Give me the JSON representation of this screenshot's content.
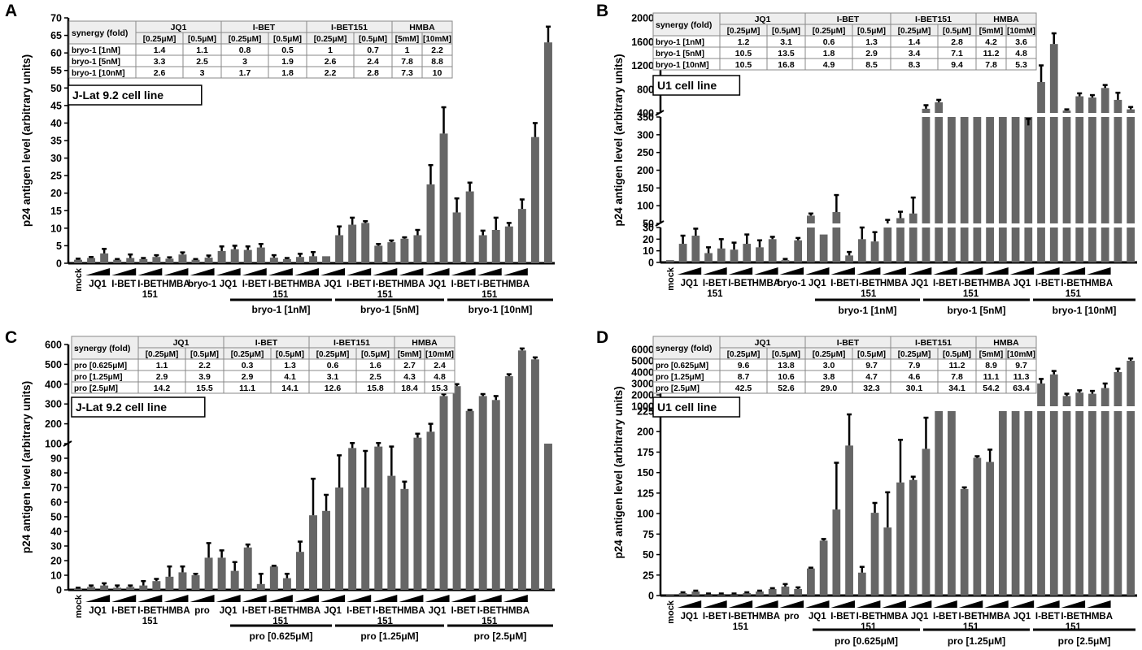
{
  "colors": {
    "bar": "#666666",
    "error": "#000000",
    "axis": "#000000",
    "table_header": "#eeeeee",
    "table_line": "#888888"
  },
  "panels": [
    {
      "letter": "A",
      "ylabel": "p24 antigen level (arbitrary units)",
      "cell_line": "J-Lat 9.2 cell line",
      "table": {
        "corner": "synergy (fold)",
        "groups": [
          "JQ1",
          "I-BET",
          "I-BET151",
          "HMBA"
        ],
        "subheaders": [
          "[0.25μM]",
          "[0.5μM]",
          "[0.25μM]",
          "[0.5μM]",
          "[0.25μM]",
          "[0.5μM]",
          "[5mM]",
          "[10mM]"
        ],
        "rows": [
          {
            "label": "bryo-1 [1nM]",
            "values": [
              "1.4",
              "1.1",
              "0.8",
              "0.5",
              "1",
              "0.7",
              "1",
              "2.2"
            ]
          },
          {
            "label": "bryo-1 [5nM]",
            "values": [
              "3.3",
              "2.5",
              "3",
              "1.9",
              "2.6",
              "2.4",
              "7.8",
              "8.8"
            ]
          },
          {
            "label": "bryo-1 [10nM]",
            "values": [
              "2.6",
              "3",
              "1.7",
              "1.8",
              "2.2",
              "2.8",
              "7.3",
              "10"
            ]
          }
        ]
      },
      "x_labels": [
        "mock",
        "JQ1",
        "I-BET",
        "I-BET\n151",
        "HMBA",
        "bryo-1",
        "JQ1",
        "I-BET",
        "I-BET\n151",
        "HMBA",
        "JQ1",
        "I-BET",
        "I-BET\n151",
        "HMBA",
        "JQ1",
        "I-BET",
        "I-BET\n151",
        "HMBA"
      ],
      "bracket_labels": [
        "bryo-1 [1nM]",
        "bryo-1 [5nM]",
        "bryo-1 [10nM]"
      ]
    },
    {
      "letter": "B",
      "ylabel": "p24 antigen level (arbitrary units)",
      "cell_line": "U1 cell line",
      "table": {
        "corner": "synergy (fold)",
        "groups": [
          "JQ1",
          "I-BET",
          "I-BET151",
          "HMBA"
        ],
        "subheaders": [
          "[0.25μM]",
          "[0.5μM]",
          "[0.25μM]",
          "[0.5μM]",
          "[0.25μM]",
          "[0.5μM]",
          "[5mM]",
          "[10mM]"
        ],
        "rows": [
          {
            "label": "bryo-1 [1nM]",
            "values": [
              "1.2",
              "3.1",
              "0.6",
              "1.3",
              "1.4",
              "2.8",
              "4.2",
              "3.6"
            ]
          },
          {
            "label": "bryo-1 [5nM]",
            "values": [
              "10.5",
              "13.5",
              "1.8",
              "2.9",
              "3.4",
              "7.1",
              "11.2",
              "4.8"
            ]
          },
          {
            "label": "bryo-1 [10nM]",
            "values": [
              "10.5",
              "16.8",
              "4.9",
              "8.5",
              "8.3",
              "9.4",
              "7.8",
              "5.3"
            ]
          }
        ]
      },
      "x_labels": [
        "mock",
        "JQ1",
        "I-BET\n151",
        "I-BET",
        "HMBA",
        "bryo-1",
        "JQ1",
        "I-BET",
        "I-BET\n151",
        "HMBA",
        "JQ1",
        "I-BET",
        "I-BET\n151",
        "HMBA",
        "JQ1",
        "I-BET",
        "I-BET\n151",
        "HMBA"
      ],
      "bracket_labels": [
        "bryo-1 [1nM]",
        "bryo-1 [5nM]",
        "bryo-1 [10nM]"
      ]
    },
    {
      "letter": "C",
      "ylabel": "p24 antigen level (arbitrary units)",
      "cell_line": "J-Lat 9.2 cell line",
      "table": {
        "corner": "synergy (fold)",
        "groups": [
          "JQ1",
          "I-BET",
          "I-BET151",
          "HMBA"
        ],
        "subheaders": [
          "[0.25μM]",
          "[0.5μM]",
          "[0.25μM]",
          "[0.5μM]",
          "[0.25μM]",
          "[0.5μM]",
          "[5mM]",
          "[10mM]"
        ],
        "rows": [
          {
            "label": "pro [0.625μM]",
            "values": [
              "1.1",
              "2.2",
              "0.3",
              "1.3",
              "0.6",
              "1.6",
              "2.7",
              "2.4"
            ]
          },
          {
            "label": "pro [1.25μM]",
            "values": [
              "2.9",
              "3.9",
              "2.9",
              "4.1",
              "3.1",
              "2.5",
              "4.3",
              "4.8"
            ]
          },
          {
            "label": "pro [2.5μM]",
            "values": [
              "14.2",
              "15.5",
              "11.1",
              "14.1",
              "12.6",
              "15.8",
              "18.4",
              "15.3"
            ]
          }
        ]
      },
      "x_labels": [
        "mock",
        "JQ1",
        "I-BET",
        "I-BET\n151",
        "HMBA",
        "pro",
        "JQ1",
        "I-BET",
        "I-BET\n151",
        "HMBA",
        "JQ1",
        "I-BET",
        "I-BET\n151",
        "HMBA",
        "JQ1",
        "I-BET",
        "I-BET\n151",
        "HMBA"
      ],
      "bracket_labels": [
        "pro [0.625μM]",
        "pro [1.25μM]",
        "pro [2.5μM]"
      ]
    },
    {
      "letter": "D",
      "ylabel": "p24 antigen level (arbitrary units)",
      "cell_line": "U1 cell line",
      "table": {
        "corner": "synergy (fold)",
        "groups": [
          "JQ1",
          "I-BET",
          "I-BET151",
          "HMBA"
        ],
        "subheaders": [
          "[0.25μM]",
          "[0.5μM]",
          "[0.25μM]",
          "[0.5μM]",
          "[0.25μM]",
          "[0.5μM]",
          "[5mM]",
          "[10mM]"
        ],
        "rows": [
          {
            "label": "pro [0.625μM]",
            "values": [
              "9.6",
              "13.8",
              "3.0",
              "9.7",
              "7.9",
              "11.2",
              "8.9",
              "9.7"
            ]
          },
          {
            "label": "pro [1.25μM]",
            "values": [
              "8.7",
              "10.6",
              "3.8",
              "4.7",
              "4.6",
              "7.8",
              "11.1",
              "11.3"
            ]
          },
          {
            "label": "pro [2.5μM]",
            "values": [
              "42.5",
              "52.6",
              "29.0",
              "32.3",
              "30.1",
              "34.1",
              "54.2",
              "63.4"
            ]
          }
        ]
      },
      "x_labels": [
        "mock",
        "JQ1",
        "I-BET",
        "I-BET\n151",
        "HMBA",
        "pro",
        "JQ1",
        "I-BET",
        "I-BET\n151",
        "HMBA",
        "JQ1",
        "I-BET",
        "I-BET\n151",
        "HMBA",
        "JQ1",
        "I-BET",
        "I-BET\n151",
        "HMBA"
      ],
      "bracket_labels": [
        "pro [0.625μM]",
        "pro [1.25μM]",
        "pro [2.5μM]"
      ]
    }
  ],
  "chart_data": [
    {
      "type": "bar",
      "panel": "A",
      "ylabel": "p24 antigen level (arbitrary units)",
      "ylim": [
        0,
        70
      ],
      "yticks": [
        0,
        5,
        10,
        15,
        20,
        25,
        30,
        35,
        40,
        45,
        50,
        55,
        60,
        65,
        70
      ],
      "values": [
        1.0,
        1.5,
        2.8,
        1.0,
        1.5,
        1.2,
        1.8,
        1.3,
        2.5,
        1.0,
        1.6,
        3.5,
        4.0,
        3.8,
        4.5,
        1.6,
        1.2,
        1.8,
        2.0,
        2.0,
        8.0,
        11.0,
        11.5,
        5.0,
        6.0,
        7.0,
        8.0,
        22.5,
        37.0,
        14.5,
        20.5,
        8.0,
        9.5,
        10.5,
        15.5,
        36.0,
        63.0
      ],
      "errors": [
        0.3,
        0.3,
        1.3,
        0.2,
        1.0,
        0.3,
        0.5,
        0.4,
        0.6,
        0.2,
        0.6,
        1.3,
        1.0,
        1.0,
        1.0,
        0.7,
        0.3,
        0.9,
        1.2,
        0,
        2.5,
        2.0,
        0.5,
        0.5,
        0.5,
        0.4,
        1.5,
        5.5,
        7.5,
        4.0,
        2.5,
        1.3,
        3.5,
        1.0,
        2.7,
        4.0,
        4.5
      ]
    },
    {
      "type": "bar",
      "panel": "B",
      "ylabel": "p24 antigen level (arbitrary units)",
      "broken_axis": true,
      "ytick_labels": [
        "0",
        "10",
        "20",
        "30",
        "50",
        "100",
        "150",
        "200",
        "250",
        "300",
        "350",
        "400",
        "800",
        "1200",
        "1600",
        "2000"
      ],
      "values": [
        2,
        16,
        23,
        8,
        12,
        11,
        16,
        13,
        20,
        2,
        19,
        72,
        24,
        82,
        6,
        20,
        18,
        50,
        65,
        78,
        350,
        350,
        350,
        350,
        350,
        350,
        350,
        350,
        350,
        350,
        350,
        350,
        350,
        350,
        350,
        350,
        350
      ],
      "errors": [
        0,
        7,
        6,
        5,
        8,
        6,
        8,
        6,
        2,
        1,
        2,
        6,
        0,
        48,
        3,
        12,
        8,
        10,
        18,
        45,
        0,
        0,
        0,
        0,
        0,
        0,
        0,
        0,
        0,
        0,
        0,
        0,
        0,
        0,
        0,
        0,
        0
      ],
      "upper_values": [
        null,
        null,
        null,
        null,
        null,
        null,
        null,
        null,
        null,
        null,
        null,
        null,
        null,
        null,
        null,
        null,
        null,
        null,
        null,
        null,
        470,
        580,
        null,
        null,
        null,
        null,
        null,
        null,
        190,
        920,
        1560,
        440,
        680,
        660,
        820,
        620,
        460
      ],
      "upper_errors": [
        null,
        null,
        null,
        null,
        null,
        null,
        null,
        null,
        null,
        null,
        null,
        null,
        null,
        null,
        null,
        null,
        null,
        null,
        null,
        null,
        60,
        40,
        null,
        null,
        null,
        null,
        null,
        null,
        110,
        280,
        180,
        20,
        50,
        40,
        50,
        120,
        40
      ]
    },
    {
      "type": "bar",
      "panel": "C",
      "ylabel": "p24 antigen level (arbitrary units)",
      "broken_axis": true,
      "ytick_labels": [
        "0",
        "10",
        "20",
        "30",
        "40",
        "50",
        "60",
        "70",
        "80",
        "90",
        "100",
        "200",
        "300",
        "400",
        "500",
        "600"
      ],
      "values": [
        1,
        2,
        3,
        1.5,
        2,
        3,
        6,
        9,
        12,
        10,
        22,
        22,
        13,
        29,
        4,
        16,
        8,
        26,
        51,
        54,
        70,
        97,
        70,
        98,
        78,
        69,
        100,
        100,
        100,
        100,
        100,
        100,
        100,
        100,
        100,
        100,
        100
      ],
      "errors": [
        0.5,
        1,
        1.5,
        1.5,
        1,
        3,
        1.5,
        7,
        4,
        1,
        10,
        5,
        6,
        2,
        7,
        0.5,
        3,
        7,
        25,
        11,
        22,
        6,
        25,
        5,
        20,
        5,
        0,
        0,
        0,
        0,
        0,
        0,
        0,
        0,
        0,
        0,
        0
      ],
      "upper_values": [
        null,
        null,
        null,
        null,
        null,
        null,
        null,
        null,
        null,
        null,
        null,
        null,
        null,
        null,
        null,
        null,
        null,
        null,
        null,
        null,
        null,
        null,
        null,
        null,
        null,
        null,
        130,
        160,
        340,
        390,
        265,
        340,
        320,
        440,
        570,
        525,
        null
      ],
      "upper_errors": [
        null,
        null,
        null,
        null,
        null,
        null,
        null,
        null,
        null,
        null,
        null,
        null,
        null,
        null,
        null,
        null,
        null,
        null,
        null,
        null,
        null,
        null,
        null,
        null,
        null,
        null,
        20,
        40,
        10,
        10,
        5,
        10,
        20,
        10,
        10,
        10,
        null
      ]
    },
    {
      "type": "bar",
      "panel": "D",
      "ylabel": "p24 antigen level (arbitrary units)",
      "broken_axis": true,
      "ytick_labels": [
        "0",
        "25",
        "50",
        "75",
        "100",
        "125",
        "150",
        "175",
        "200",
        "225",
        "1000",
        "2000",
        "3000",
        "4000",
        "5000",
        "6000"
      ],
      "values": [
        1,
        3,
        5,
        2,
        2,
        2,
        3,
        5,
        8,
        11,
        8,
        33,
        67,
        105,
        183,
        28,
        101,
        83,
        138,
        141,
        179,
        225,
        225,
        130,
        168,
        163,
        225,
        225,
        225,
        225,
        225,
        225,
        225,
        225,
        225,
        225,
        225
      ],
      "errors": [
        0,
        1,
        1,
        0.5,
        0.5,
        0.5,
        1,
        1,
        1,
        3,
        2,
        1,
        2,
        57,
        38,
        7,
        12,
        43,
        52,
        4,
        38,
        0,
        0,
        2,
        2,
        15,
        0,
        0,
        0,
        0,
        0,
        0,
        0,
        0,
        0,
        0,
        0
      ],
      "upper_values": [
        null,
        null,
        null,
        null,
        null,
        null,
        null,
        null,
        null,
        null,
        null,
        null,
        null,
        null,
        null,
        null,
        null,
        null,
        null,
        null,
        null,
        null,
        null,
        null,
        null,
        null,
        null,
        null,
        null,
        3000,
        3800,
        1900,
        2200,
        2100,
        2600,
        4000,
        5000
      ],
      "upper_errors": [
        null,
        null,
        null,
        null,
        null,
        null,
        null,
        null,
        null,
        null,
        null,
        null,
        null,
        null,
        null,
        null,
        null,
        null,
        null,
        null,
        null,
        null,
        null,
        null,
        null,
        null,
        null,
        null,
        null,
        400,
        300,
        200,
        200,
        250,
        400,
        300,
        200
      ]
    }
  ]
}
